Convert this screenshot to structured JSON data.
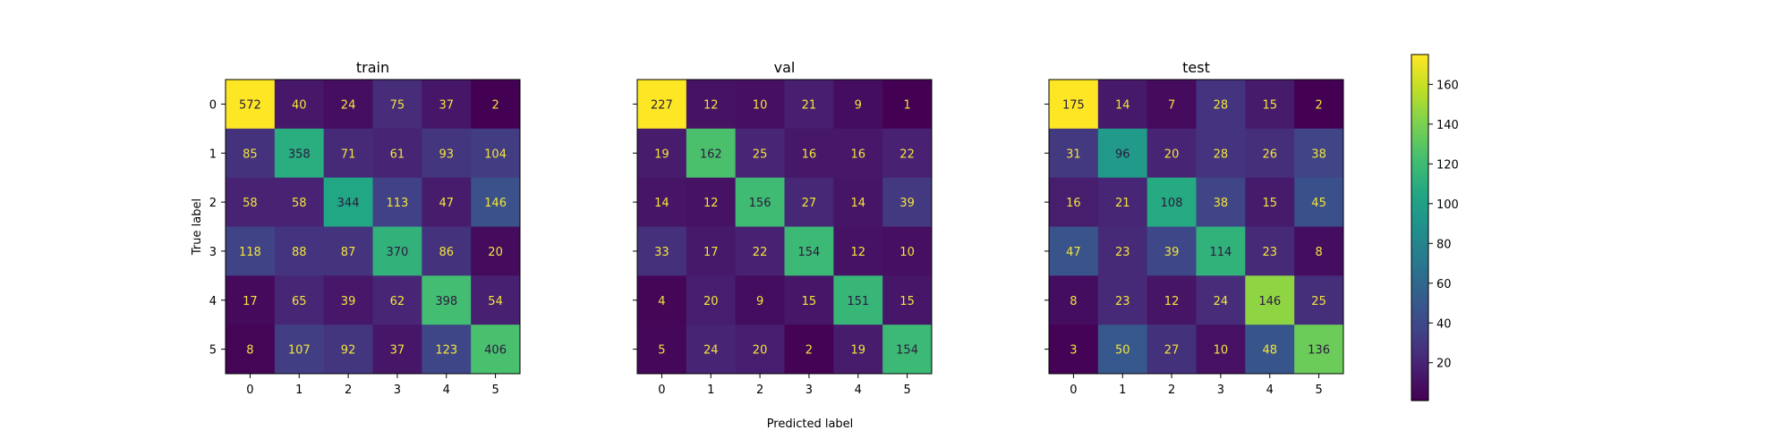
{
  "chart_data": {
    "type": "heatmap",
    "xlabel": "Predicted label",
    "ylabel": "True label",
    "colormap": "viridis",
    "colorbar": {
      "vmin": 1,
      "vmax": 175,
      "ticks": [
        20,
        40,
        60,
        80,
        100,
        120,
        140,
        160
      ]
    },
    "panels": [
      {
        "title": "train",
        "x_ticks": [
          "0",
          "1",
          "2",
          "3",
          "4",
          "5"
        ],
        "y_ticks": [
          "0",
          "1",
          "2",
          "3",
          "4",
          "5"
        ],
        "matrix": [
          [
            572,
            40,
            24,
            75,
            37,
            2
          ],
          [
            85,
            358,
            71,
            61,
            93,
            104
          ],
          [
            58,
            58,
            344,
            113,
            47,
            146
          ],
          [
            118,
            88,
            87,
            370,
            86,
            20
          ],
          [
            17,
            65,
            39,
            62,
            398,
            54
          ],
          [
            8,
            107,
            92,
            37,
            123,
            406
          ]
        ]
      },
      {
        "title": "val",
        "x_ticks": [
          "0",
          "1",
          "2",
          "3",
          "4",
          "5"
        ],
        "y_ticks": [],
        "matrix": [
          [
            227,
            12,
            10,
            21,
            9,
            1
          ],
          [
            19,
            162,
            25,
            16,
            16,
            22
          ],
          [
            14,
            12,
            156,
            27,
            14,
            39
          ],
          [
            33,
            17,
            22,
            154,
            12,
            10
          ],
          [
            4,
            20,
            9,
            15,
            151,
            15
          ],
          [
            5,
            24,
            20,
            2,
            19,
            154
          ]
        ]
      },
      {
        "title": "test",
        "x_ticks": [
          "0",
          "1",
          "2",
          "3",
          "4",
          "5"
        ],
        "y_ticks": [],
        "matrix": [
          [
            175,
            14,
            7,
            28,
            15,
            2
          ],
          [
            31,
            96,
            20,
            28,
            26,
            38
          ],
          [
            16,
            21,
            108,
            38,
            15,
            45
          ],
          [
            47,
            23,
            39,
            114,
            23,
            8
          ],
          [
            8,
            23,
            12,
            24,
            146,
            25
          ],
          [
            3,
            50,
            27,
            10,
            48,
            136
          ]
        ]
      }
    ]
  }
}
